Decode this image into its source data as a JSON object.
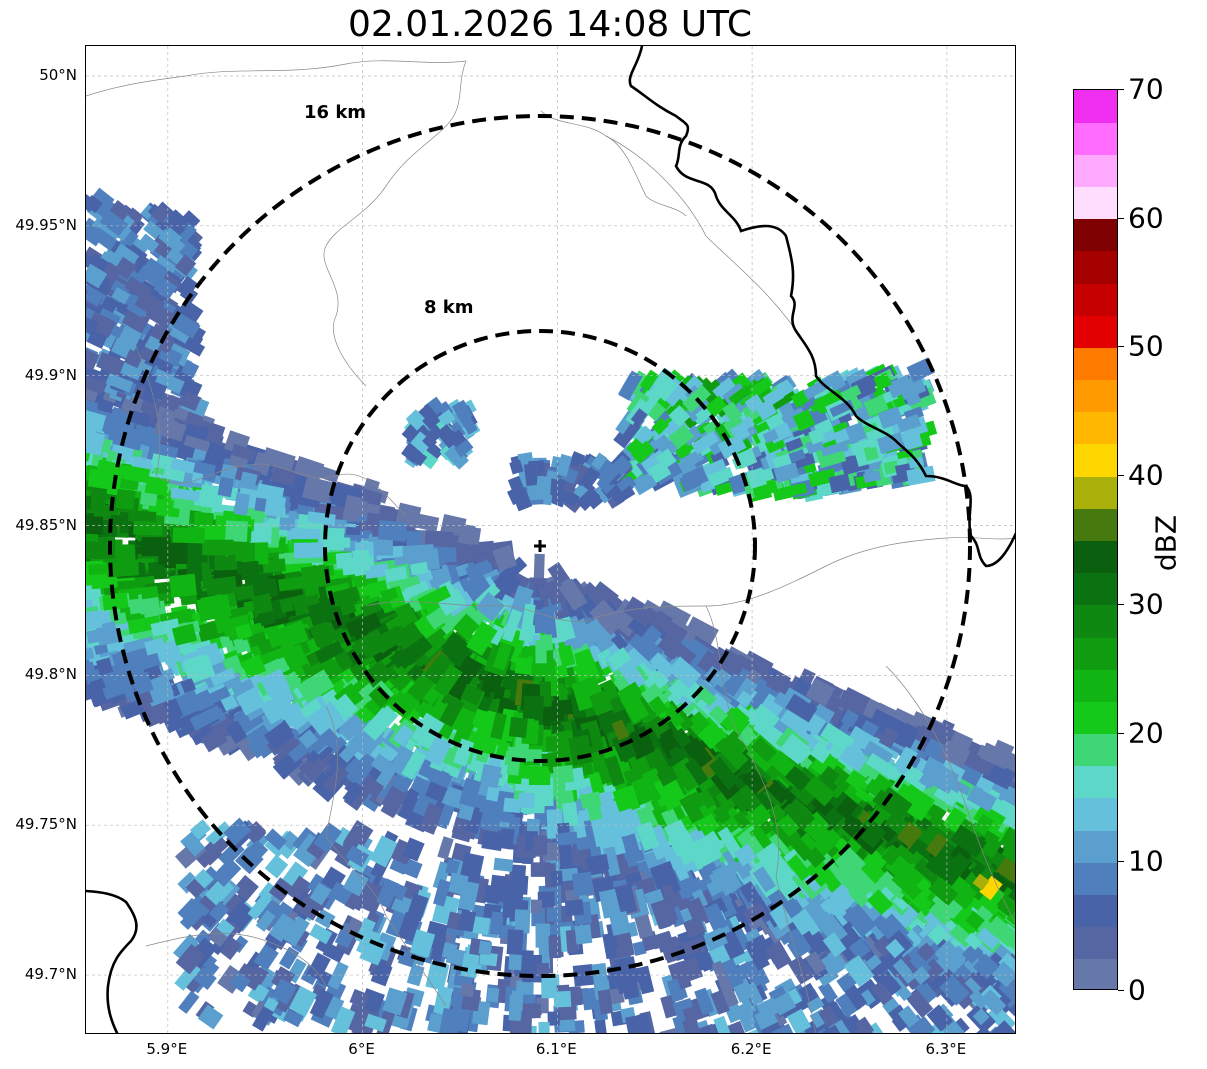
{
  "title": "02.01.2026 14:08 UTC",
  "map": {
    "lat_ticks": [
      {
        "value": 50.0,
        "label": "50°N"
      },
      {
        "value": 49.95,
        "label": "49.95°N"
      },
      {
        "value": 49.9,
        "label": "49.9°N"
      },
      {
        "value": 49.85,
        "label": "49.85°N"
      },
      {
        "value": 49.8,
        "label": "49.8°N"
      },
      {
        "value": 49.75,
        "label": "49.75°N"
      },
      {
        "value": 49.7,
        "label": "49.7°N"
      }
    ],
    "lon_ticks": [
      {
        "value": 5.9,
        "label": "5.9°E"
      },
      {
        "value": 6.0,
        "label": "6°E"
      },
      {
        "value": 6.1,
        "label": "6.1°E"
      },
      {
        "value": 6.2,
        "label": "6.2°E"
      },
      {
        "value": 6.3,
        "label": "6.3°E"
      }
    ],
    "lon_range": [
      5.858,
      6.336
    ],
    "lat_range": [
      49.68,
      50.01
    ],
    "radar_site": {
      "lat": 49.843,
      "lon": 6.092
    },
    "range_rings": [
      {
        "radius_km": 16,
        "label": "16 km"
      },
      {
        "radius_km": 8,
        "label": "8 km"
      }
    ],
    "gridlines": true
  },
  "colorbar": {
    "unit": "dBZ",
    "min": 0,
    "max": 70,
    "ticks": [
      "0",
      "10",
      "20",
      "30",
      "40",
      "50",
      "60",
      "70"
    ],
    "colors": [
      "#6678aa",
      "#5566a3",
      "#4863a8",
      "#4f7fbd",
      "#5a9fcd",
      "#65c0dc",
      "#5dd8c8",
      "#3fd675",
      "#14c919",
      "#10b514",
      "#0f9c10",
      "#0e8810",
      "#0b7211",
      "#0a600f",
      "#467a0e",
      "#a9b00a",
      "#ffd700",
      "#ffb700",
      "#ff9a00",
      "#ff7b00",
      "#e30000",
      "#c60000",
      "#a40000",
      "#7f0000",
      "#ffddff",
      "#ffaaff",
      "#ff6cff",
      "#f02ff0"
    ]
  }
}
